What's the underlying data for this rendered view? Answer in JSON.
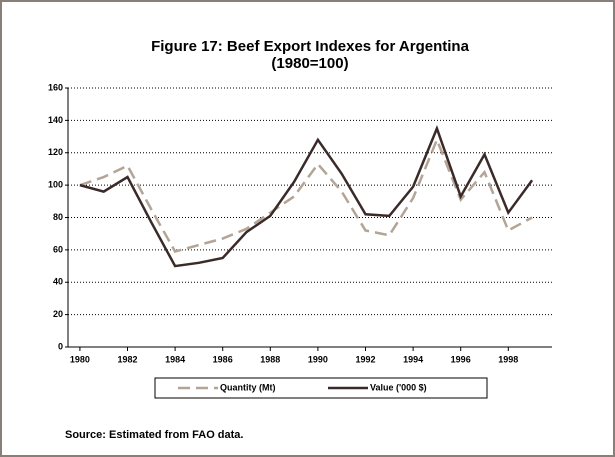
{
  "chart_data": {
    "type": "line",
    "title": "Figure 17: Beef Export Indexes for Argentina",
    "subtitle": "(1980=100)",
    "x": [
      1980,
      1981,
      1982,
      1983,
      1984,
      1985,
      1986,
      1987,
      1988,
      1989,
      1990,
      1991,
      1992,
      1993,
      1994,
      1995,
      1996,
      1997,
      1998,
      1999
    ],
    "series": [
      {
        "name": "Quantity (Mt)",
        "color": "#b3a496",
        "dash": true,
        "values": [
          100,
          105,
          112,
          85,
          59,
          63,
          67,
          73,
          83,
          93,
          113,
          96,
          72,
          69,
          92,
          128,
          91,
          108,
          72,
          80
        ]
      },
      {
        "name": "Value ('000 $)",
        "color": "#3b2a2a",
        "dash": false,
        "values": [
          100,
          96,
          105,
          77,
          50,
          52,
          55,
          71,
          81,
          102,
          128,
          107,
          82,
          81,
          99,
          135,
          93,
          119,
          83,
          103
        ]
      }
    ],
    "xlim": [
      1979.5,
      1999.5
    ],
    "xticks": [
      1980,
      1982,
      1984,
      1986,
      1988,
      1990,
      1992,
      1994,
      1996,
      1998
    ],
    "ylim": [
      0,
      160
    ],
    "yticks": [
      0,
      20,
      40,
      60,
      80,
      100,
      120,
      140,
      160
    ],
    "grid": true,
    "source": "Source: Estimated from FAO data."
  }
}
